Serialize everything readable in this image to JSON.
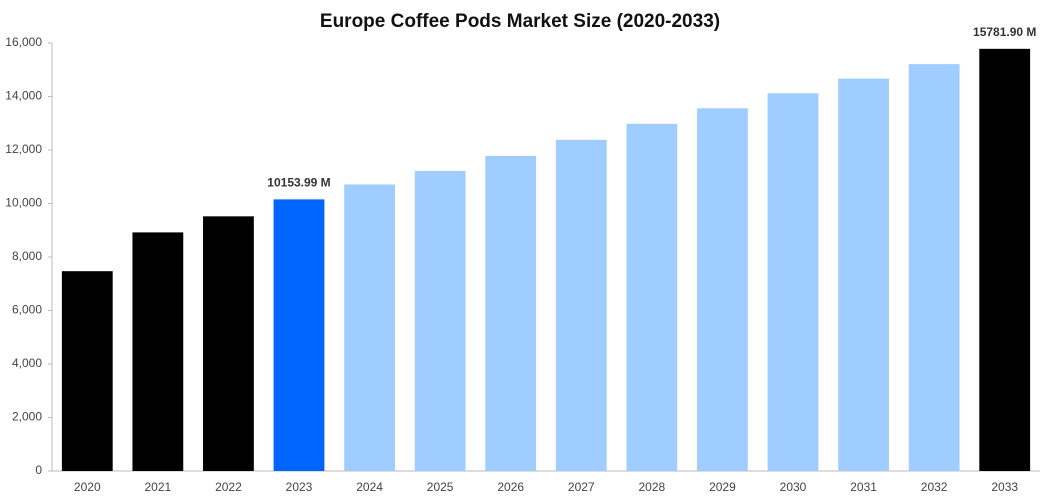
{
  "chart_data": {
    "type": "bar",
    "title": "Europe Coffee Pods Market Size (2020-2033)",
    "categories": [
      "2020",
      "2021",
      "2022",
      "2023",
      "2024",
      "2025",
      "2026",
      "2027",
      "2028",
      "2029",
      "2030",
      "2031",
      "2032",
      "2033"
    ],
    "values": [
      7470,
      8920,
      9520,
      10153.99,
      10710,
      11220,
      11780,
      12380,
      12980,
      13560,
      14120,
      14670,
      15210,
      15781.9
    ],
    "value_labels": [
      null,
      null,
      null,
      "10153.99 M",
      null,
      null,
      null,
      null,
      null,
      null,
      null,
      null,
      null,
      "15781.90 M"
    ],
    "colors": [
      "#000000",
      "#000000",
      "#000000",
      "#0066ff",
      "#a0cdff",
      "#a0cdff",
      "#a0cdff",
      "#a0cdff",
      "#a0cdff",
      "#a0cdff",
      "#a0cdff",
      "#a0cdff",
      "#a0cdff",
      "#000000"
    ],
    "ylim": [
      0,
      16000
    ],
    "yticks": [
      0,
      {
        "value": 2000,
        "label": "2,000"
      },
      {
        "value": 4000,
        "label": "4,000"
      },
      {
        "value": 6000,
        "label": "6,000"
      },
      {
        "value": 8000,
        "label": "8,000"
      },
      {
        "value": 10000,
        "label": "10,000"
      },
      {
        "value": 12000,
        "label": "12,000"
      },
      {
        "value": 14000,
        "label": "14,000"
      },
      {
        "value": 16000,
        "label": "16,000"
      }
    ],
    "grid": false
  }
}
